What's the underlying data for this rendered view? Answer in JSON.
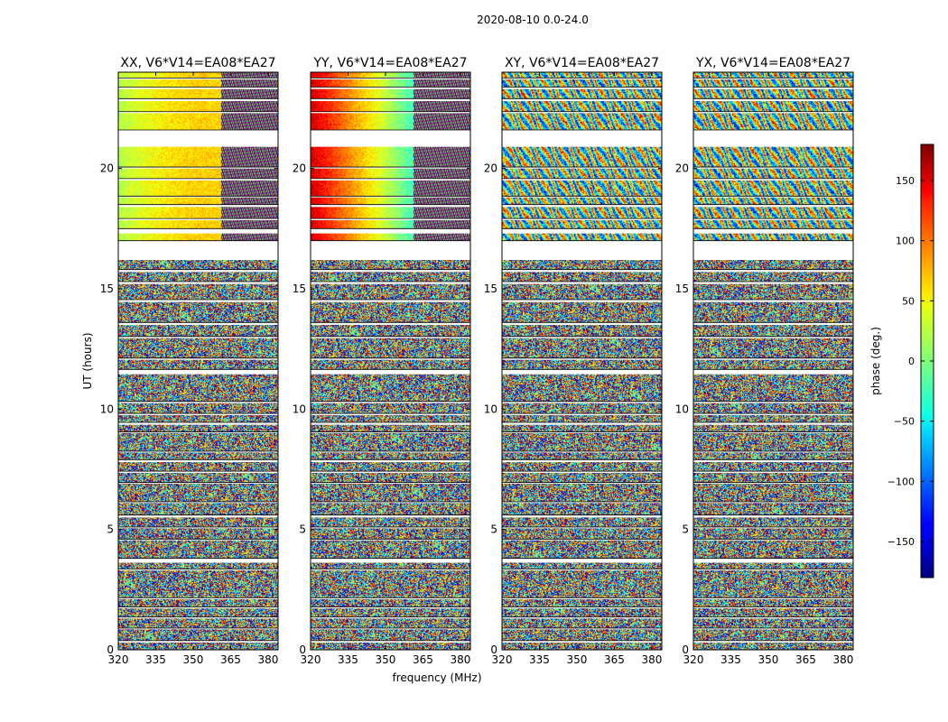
{
  "figure": {
    "suptitle": "2020-08-10 0.0-24.0",
    "xlabel": "frequency (MHz)",
    "ylabel": "UT (hours)",
    "colorbar_label": "phase (deg.)",
    "colormap": "jet"
  },
  "chart_data": {
    "type": "heatmap",
    "panels": [
      {
        "title": "XX, V6*V14=EA08*EA27",
        "style": "parallel"
      },
      {
        "title": "YY, V6*V14=EA08*EA27",
        "style": "parallel"
      },
      {
        "title": "XY, V6*V14=EA08*EA27",
        "style": "cross"
      },
      {
        "title": "YX, V6*V14=EA08*EA27",
        "style": "cross"
      }
    ],
    "x_ticks": [
      320,
      335,
      350,
      365,
      380
    ],
    "x_range": [
      320,
      384
    ],
    "y_ticks": [
      0,
      5,
      10,
      15,
      20
    ],
    "y_range": [
      0,
      24
    ],
    "colorbar_ticks": [
      150,
      100,
      50,
      0,
      -50,
      -100,
      -150
    ],
    "colorbar_range": [
      -180,
      180
    ],
    "flagged_ut_ranges": [
      [
        0.3,
        0.38
      ],
      [
        0.85,
        0.9
      ],
      [
        1.3,
        1.36
      ],
      [
        1.72,
        1.78
      ],
      [
        2.1,
        2.16
      ],
      [
        3.3,
        3.36
      ],
      [
        3.62,
        3.8
      ],
      [
        4.55,
        4.6
      ],
      [
        5.05,
        5.1
      ],
      [
        5.5,
        5.6
      ],
      [
        6.1,
        6.15
      ],
      [
        6.9,
        6.95
      ],
      [
        7.35,
        7.42
      ],
      [
        7.8,
        7.9
      ],
      [
        8.2,
        8.25
      ],
      [
        9.0,
        9.05
      ],
      [
        9.35,
        9.45
      ],
      [
        9.75,
        9.82
      ],
      [
        10.25,
        10.32
      ],
      [
        11.45,
        11.65
      ],
      [
        12.05,
        12.12
      ],
      [
        12.95,
        13.02
      ],
      [
        13.5,
        13.6
      ],
      [
        14.45,
        14.55
      ],
      [
        15.2,
        15.3
      ],
      [
        15.7,
        15.8
      ],
      [
        16.2,
        17.0
      ],
      [
        17.3,
        17.5
      ],
      [
        17.85,
        17.92
      ],
      [
        18.4,
        18.5
      ],
      [
        18.8,
        18.85
      ],
      [
        19.5,
        19.58
      ],
      [
        20.0,
        20.06
      ],
      [
        20.9,
        21.6
      ],
      [
        22.3,
        22.36
      ],
      [
        22.8,
        22.9
      ],
      [
        23.3,
        23.38
      ],
      [
        23.7,
        23.76
      ]
    ]
  }
}
